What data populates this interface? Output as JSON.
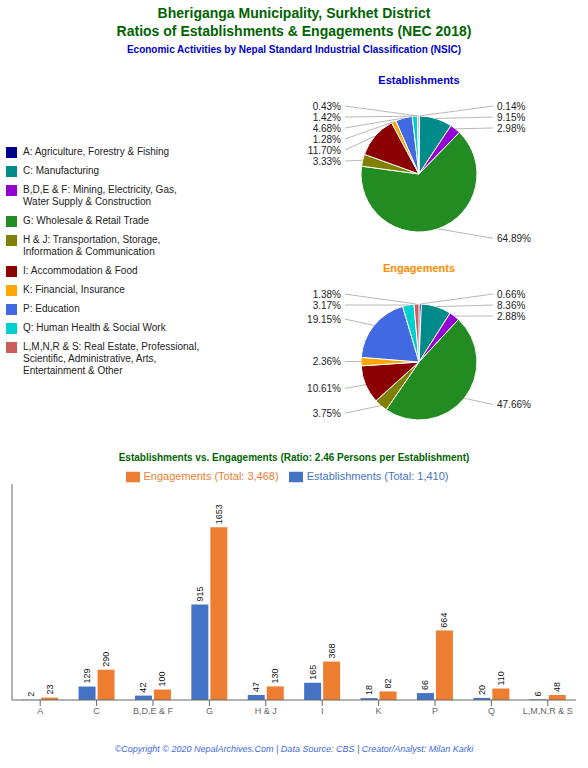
{
  "title": "Bheriganga Municipality, Surkhet District\nRatios of Establishments & Engagements (NEC 2018)",
  "subtitle": "Economic Activities by Nepal Standard Industrial Classification (NSIC)",
  "annotations": [
    "©Copyright © 2020 NepalArchives.Com | Data Source: CBS | Creator/Analyst: Milan Karki"
  ],
  "chart_data": [
    {
      "type": "pie",
      "title": "Establishments",
      "categories": [
        "A: Agriculture, Forestry & Fishing",
        "C: Manufacturing",
        "B,D,E & F: Mining, Electricity, Gas,\nWater Supply & Construction",
        "G: Wholesale & Retail Trade",
        "H & J: Transportation, Storage,\nInformation & Communication",
        "I: Accommodation & Food",
        "K: Financial, Insurance",
        "P: Education",
        "Q: Human Health & Social Work",
        "L,M,N,R & S: Real Estate, Professional,\nScientific, Administrative, Arts,\nEntertainment & Other"
      ],
      "values": [
        0.14,
        9.15,
        2.98,
        64.89,
        3.33,
        11.7,
        1.28,
        4.68,
        1.42,
        0.43
      ],
      "value_labels": [
        "0.14%",
        "9.15%",
        "2.98%",
        "64.89%",
        "3.33%",
        "11.70%",
        "1.28%",
        "4.68%",
        "1.42%",
        "0.43%"
      ],
      "colors": [
        "#00008B",
        "#008B8B",
        "#9400D3",
        "#228B22",
        "#808000",
        "#8B0000",
        "#FFA500",
        "#4169E1",
        "#00CED1",
        "#CD5C5C"
      ],
      "data_labels": true,
      "legend": "left"
    },
    {
      "type": "pie",
      "title": "Engagements",
      "categories": [
        "A: Agriculture, Forestry & Fishing",
        "C: Manufacturing",
        "B,D,E & F: Mining, Electricity, Gas,\nWater Supply & Construction",
        "G: Wholesale & Retail Trade",
        "H & J: Transportation, Storage,\nInformation & Communication",
        "I: Accommodation & Food",
        "K: Financial, Insurance",
        "P: Education",
        "Q: Human Health & Social Work",
        "L,M,N,R & S: Real Estate, Professional,\nScientific, Administrative, Arts,\nEntertainment & Other"
      ],
      "values": [
        0.66,
        8.36,
        2.88,
        47.66,
        3.75,
        10.61,
        2.36,
        19.15,
        3.17,
        1.38
      ],
      "value_labels": [
        "0.66%",
        "8.36%",
        "2.88%",
        "47.66%",
        "3.75%",
        "10.61%",
        "2.36%",
        "19.15%",
        "3.17%",
        "1.38%"
      ],
      "colors": [
        "#00008B",
        "#008B8B",
        "#9400D3",
        "#228B22",
        "#808000",
        "#8B0000",
        "#FFA500",
        "#4169E1",
        "#00CED1",
        "#CD5C5C"
      ],
      "data_labels": true
    },
    {
      "type": "bar",
      "title": "Establishments vs. Engagements (Ratio: 2.46 Persons per Establishment)",
      "categories": [
        "A",
        "C",
        "B,D,E & F",
        "G",
        "H & J",
        "I",
        "K",
        "P",
        "Q",
        "L,M,N,R & S"
      ],
      "series": [
        {
          "name": "Establishments (Total: 1,410)",
          "color": "#4472C4",
          "values": [
            2,
            129,
            42,
            915,
            47,
            165,
            18,
            66,
            20,
            6
          ]
        },
        {
          "name": "Engagements (Total: 3,468)",
          "color": "#ED7D31",
          "values": [
            23,
            290,
            100,
            1653,
            130,
            368,
            82,
            664,
            110,
            48
          ]
        }
      ],
      "ylim": [
        0,
        2066.25
      ],
      "tick_labels": "x",
      "data_labels": true,
      "legend": "top",
      "grid": false
    }
  ]
}
